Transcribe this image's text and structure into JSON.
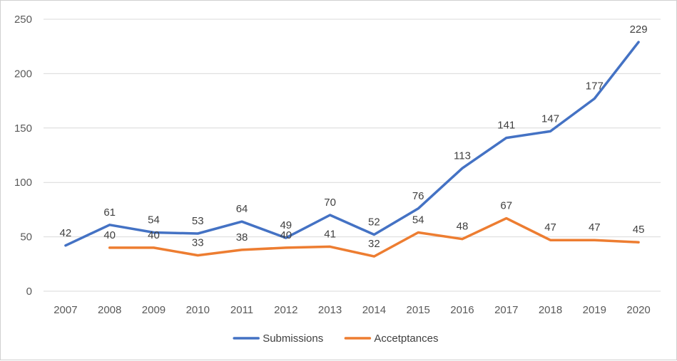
{
  "chart_data": {
    "type": "line",
    "title": "",
    "xlabel": "",
    "ylabel": "",
    "categories": [
      "2007",
      "2008",
      "2009",
      "2010",
      "2011",
      "2012",
      "2013",
      "2014",
      "2015",
      "2016",
      "2017",
      "2018",
      "2019",
      "2020"
    ],
    "ylim": [
      0,
      250
    ],
    "yticks": [
      0,
      50,
      100,
      150,
      200,
      250
    ],
    "grid": true,
    "legend_position": "bottom",
    "series": [
      {
        "name": "Submissions",
        "color": "#4472C4",
        "values": [
          42,
          61,
          54,
          53,
          64,
          49,
          70,
          52,
          76,
          113,
          141,
          147,
          177,
          229
        ]
      },
      {
        "name": "Accetptances",
        "color": "#ED7D31",
        "values": [
          null,
          40,
          40,
          33,
          38,
          40,
          41,
          32,
          54,
          48,
          67,
          47,
          47,
          45
        ]
      }
    ]
  }
}
